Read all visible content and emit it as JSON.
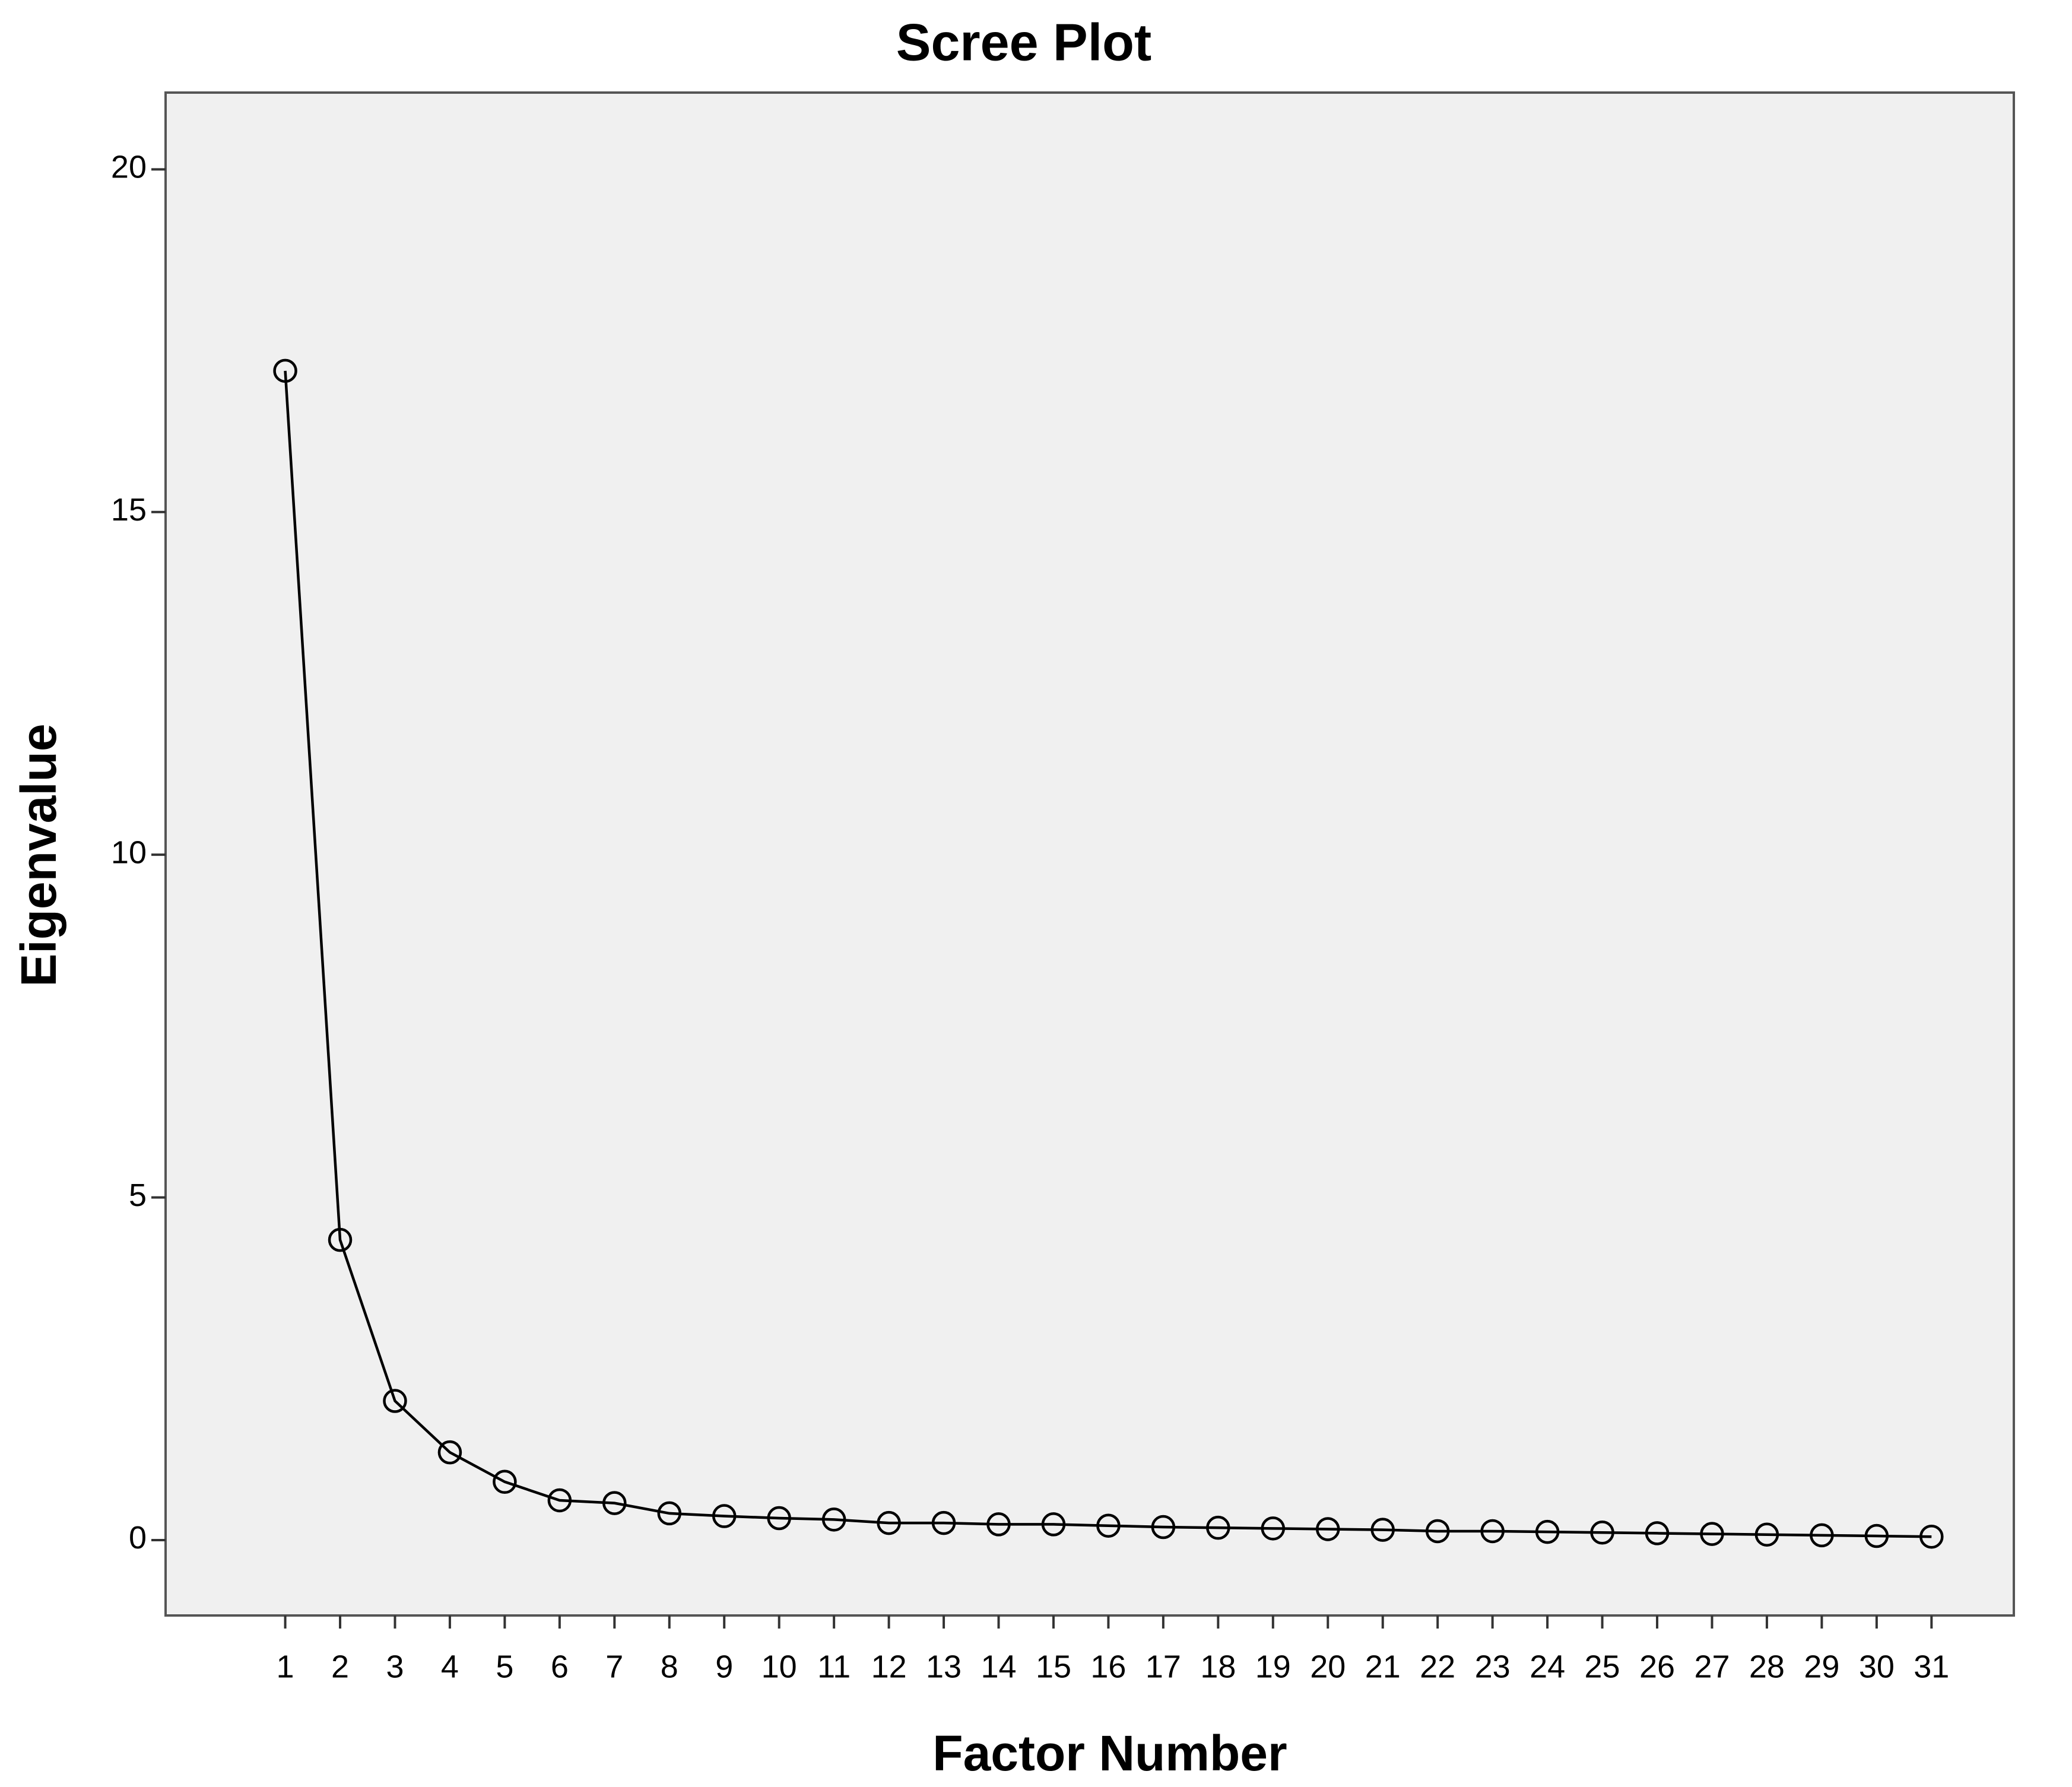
{
  "chart_data": {
    "type": "line",
    "title": "Scree Plot",
    "x_label": "Factor Number",
    "y_label": "Eigenvalue",
    "x": [
      1,
      2,
      3,
      4,
      5,
      6,
      7,
      8,
      9,
      10,
      11,
      12,
      13,
      14,
      15,
      16,
      17,
      18,
      19,
      20,
      21,
      22,
      23,
      24,
      25,
      26,
      27,
      28,
      29,
      30,
      31
    ],
    "values": [
      17.06,
      4.38,
      2.03,
      1.28,
      0.85,
      0.58,
      0.54,
      0.39,
      0.35,
      0.32,
      0.3,
      0.25,
      0.25,
      0.23,
      0.23,
      0.21,
      0.19,
      0.18,
      0.17,
      0.16,
      0.15,
      0.13,
      0.13,
      0.12,
      0.11,
      0.1,
      0.09,
      0.08,
      0.07,
      0.06,
      0.05
    ],
    "color": "#000000",
    "xlim": [
      -1.18,
      32.5
    ],
    "xticks": [
      1,
      2,
      3,
      4,
      5,
      6,
      7,
      8,
      9,
      10,
      11,
      12,
      13,
      14,
      15,
      16,
      17,
      18,
      19,
      20,
      21,
      22,
      23,
      24,
      25,
      26,
      27,
      28,
      29,
      30,
      31
    ],
    "ylim": [
      -1.1,
      21.12
    ],
    "yticks": [
      0,
      5,
      10,
      15,
      20
    ],
    "grid": false
  }
}
